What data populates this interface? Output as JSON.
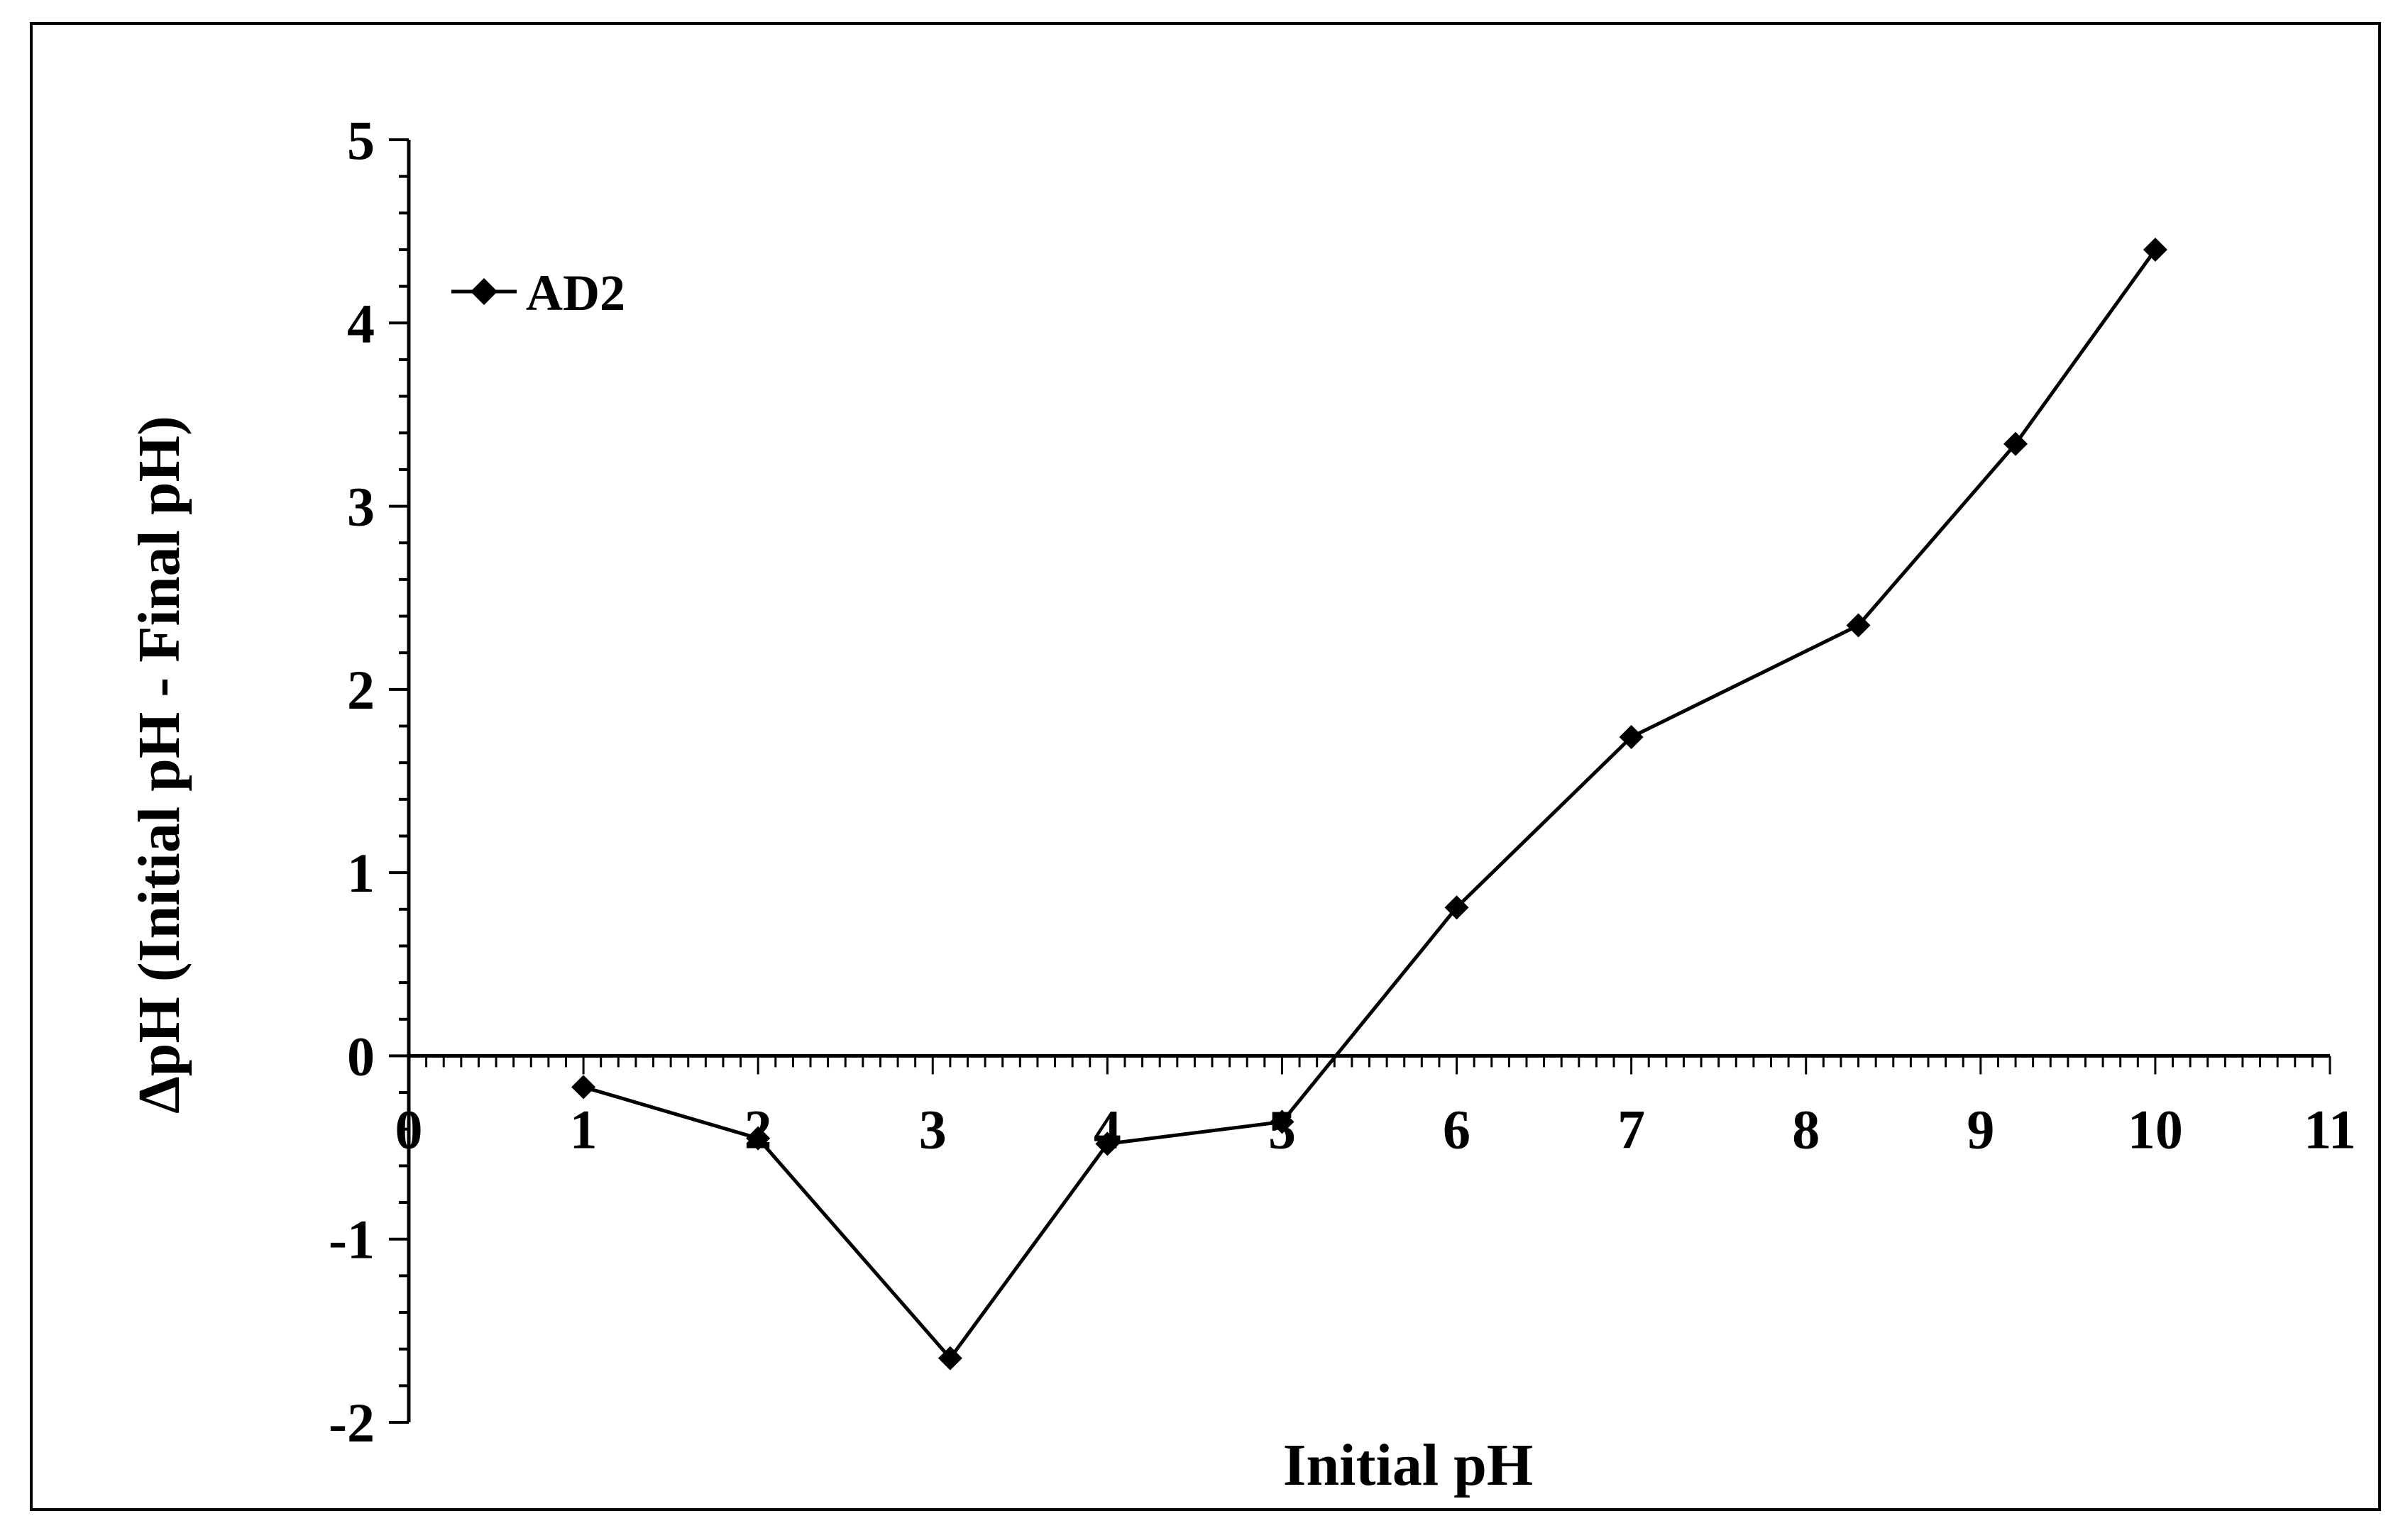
{
  "chart_data": {
    "type": "line",
    "title": "",
    "xlabel": "Initial pH",
    "ylabel": "ΔpH (Initial pH - Final pH)",
    "xlim": [
      0,
      11
    ],
    "ylim": [
      -2,
      5
    ],
    "x_ticks": [
      "0",
      "1",
      "2",
      "3",
      "4",
      "5",
      "6",
      "7",
      "8",
      "9",
      "10",
      "11"
    ],
    "y_ticks": [
      "5",
      "4",
      "3",
      "2",
      "1",
      "0",
      "-1",
      "-2"
    ],
    "grid": false,
    "legend_position": "top-left",
    "marker": "diamond",
    "series": [
      {
        "name": "AD2",
        "color": "#000000",
        "x": [
          1,
          2,
          3.1,
          4,
          5,
          6,
          7,
          8.3,
          9.2,
          10
        ],
        "y": [
          -0.17,
          -0.45,
          -1.65,
          -0.48,
          -0.36,
          0.81,
          1.74,
          2.35,
          3.34,
          4.4
        ]
      }
    ]
  }
}
